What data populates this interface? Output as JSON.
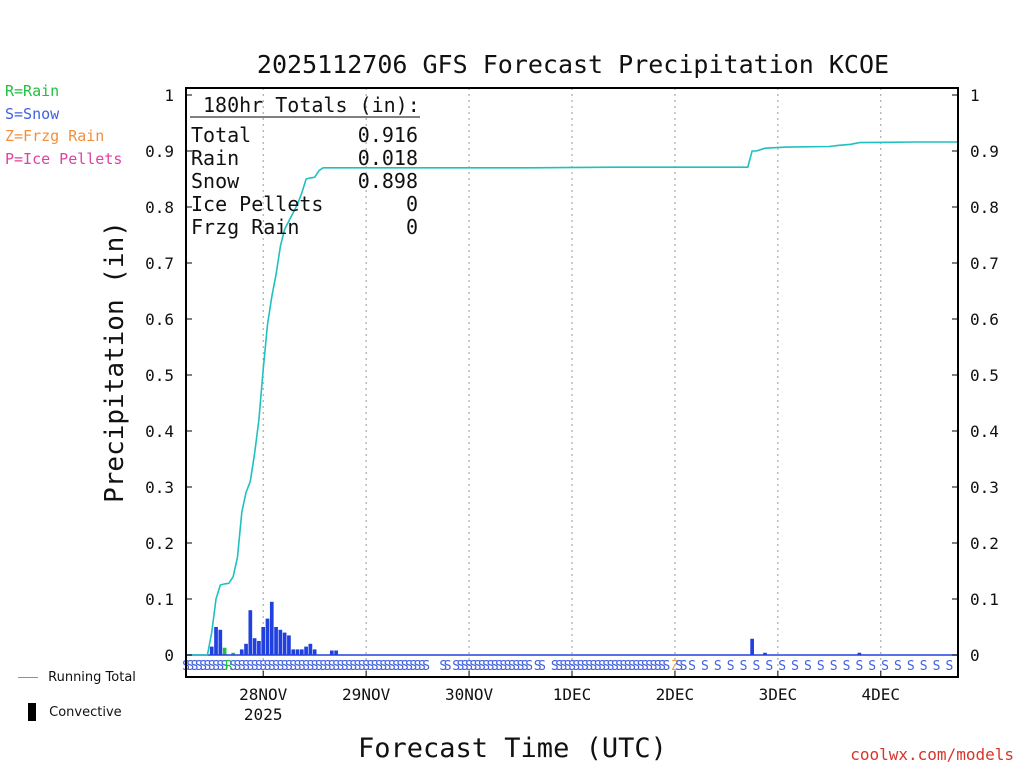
{
  "chart_data": {
    "type": "bar",
    "title": "2025112706 GFS Forecast Precipitation KCOE",
    "xlabel": "Forecast Time (UTC)",
    "ylabel": "Precipitation (in)",
    "ylim": [
      0,
      1
    ],
    "yticks": [
      0,
      0.1,
      0.2,
      0.3,
      0.4,
      0.5,
      0.6,
      0.7,
      0.8,
      0.9,
      1
    ],
    "ytick_labels": [
      "0",
      "0.1",
      "0.2",
      "0.3",
      "0.4",
      "0.5",
      "0.6",
      "0.7",
      "0.8",
      "0.9",
      "1"
    ],
    "x_unit": "hours since 2025-11-27 06Z",
    "xlim": [
      0,
      180
    ],
    "xticks": [
      {
        "hour": 18,
        "label": "28NOV",
        "sublabel": "2025"
      },
      {
        "hour": 42,
        "label": "29NOV"
      },
      {
        "hour": 66,
        "label": "30NOV"
      },
      {
        "hour": 90,
        "label": "1DEC"
      },
      {
        "hour": 114,
        "label": "2DEC"
      },
      {
        "hour": 138,
        "label": "3DEC"
      },
      {
        "hour": 162,
        "label": "4DEC"
      }
    ],
    "grid": "vertical dotted at day boundaries",
    "totals_box": {
      "header": "180hr Totals (in):",
      "rows": [
        {
          "label": "Total",
          "value": "0.916"
        },
        {
          "label": "Rain",
          "value": "0.018"
        },
        {
          "label": "Snow",
          "value": "0.898"
        },
        {
          "label": "Ice Pellets",
          "value": "0"
        },
        {
          "label": "Frzg Rain",
          "value": "0"
        }
      ]
    },
    "series": [
      {
        "name": "Running Total",
        "type": "line",
        "color": "#20c0c0",
        "points": [
          [
            0,
            0
          ],
          [
            5,
            0
          ],
          [
            6,
            0.04
          ],
          [
            7,
            0.1
          ],
          [
            8,
            0.125
          ],
          [
            9,
            0.127
          ],
          [
            10,
            0.128
          ],
          [
            11,
            0.14
          ],
          [
            12,
            0.175
          ],
          [
            13,
            0.255
          ],
          [
            14,
            0.29
          ],
          [
            15,
            0.31
          ],
          [
            16,
            0.36
          ],
          [
            17,
            0.42
          ],
          [
            18,
            0.51
          ],
          [
            19,
            0.59
          ],
          [
            20,
            0.64
          ],
          [
            21,
            0.68
          ],
          [
            22,
            0.73
          ],
          [
            23,
            0.76
          ],
          [
            24,
            0.775
          ],
          [
            25,
            0.79
          ],
          [
            26,
            0.805
          ],
          [
            27,
            0.825
          ],
          [
            28,
            0.85
          ],
          [
            29,
            0.852
          ],
          [
            30,
            0.853
          ],
          [
            31,
            0.865
          ],
          [
            32,
            0.87
          ],
          [
            40,
            0.87
          ],
          [
            60,
            0.87
          ],
          [
            80,
            0.87
          ],
          [
            100,
            0.871
          ],
          [
            120,
            0.871
          ],
          [
            131,
            0.871
          ],
          [
            132,
            0.9
          ],
          [
            133,
            0.9
          ],
          [
            135,
            0.905
          ],
          [
            140,
            0.907
          ],
          [
            150,
            0.908
          ],
          [
            152,
            0.91
          ],
          [
            155,
            0.912
          ],
          [
            157,
            0.915
          ],
          [
            170,
            0.916
          ],
          [
            180,
            0.916
          ]
        ]
      },
      {
        "name": "Snow",
        "type": "bar",
        "color": "#2040e0",
        "bar_width_hours": 1,
        "values": [
          [
            6,
            0.015
          ],
          [
            7,
            0.05
          ],
          [
            8,
            0.045
          ],
          [
            13,
            0.01
          ],
          [
            14,
            0.02
          ],
          [
            15,
            0.08
          ],
          [
            16,
            0.03
          ],
          [
            17,
            0.025
          ],
          [
            18,
            0.05
          ],
          [
            19,
            0.065
          ],
          [
            20,
            0.095
          ],
          [
            21,
            0.05
          ],
          [
            22,
            0.045
          ],
          [
            23,
            0.04
          ],
          [
            24,
            0.035
          ],
          [
            25,
            0.01
          ],
          [
            26,
            0.01
          ],
          [
            27,
            0.01
          ],
          [
            28,
            0.015
          ],
          [
            29,
            0.02
          ],
          [
            30,
            0.01
          ],
          [
            34,
            0.008
          ],
          [
            35,
            0.008
          ],
          [
            132,
            0.029
          ],
          [
            135,
            0.004
          ],
          [
            157,
            0.004
          ]
        ]
      },
      {
        "name": "Rain",
        "type": "bar",
        "color": "#20c040",
        "bar_width_hours": 1,
        "values": [
          [
            9,
            0.013
          ],
          [
            11,
            0.004
          ]
        ]
      }
    ],
    "ptype_row": {
      "description": "precip type letter per forecast hour",
      "segments": [
        {
          "from": 0,
          "to": 8,
          "step": 1,
          "letter": "S"
        },
        {
          "at": 9,
          "letter": "S"
        },
        {
          "at": 10,
          "letter": "R"
        },
        {
          "from": 11,
          "to": 56,
          "step": 1,
          "letter": "S"
        },
        {
          "from": 60,
          "to": 61,
          "step": 1,
          "letter": "S"
        },
        {
          "from": 63,
          "to": 80,
          "step": 1,
          "letter": "S"
        },
        {
          "from": 82,
          "to": 83,
          "step": 1,
          "letter": "S"
        },
        {
          "from": 86,
          "to": 112,
          "step": 1,
          "letter": "S"
        },
        {
          "at": 114,
          "letter": "Z"
        },
        {
          "from": 115,
          "to": 116,
          "step": 1,
          "letter": "S"
        },
        {
          "from": 118,
          "to": 180,
          "step": 3,
          "letter": "S"
        }
      ],
      "colors": {
        "S": "#4060e0",
        "R": "#20c040",
        "Z": "#f0a040"
      }
    }
  },
  "legend": {
    "rain": {
      "text": "R=Rain",
      "color": "#20c040"
    },
    "snow": {
      "text": "S=Snow",
      "color": "#4060e0"
    },
    "frzg": {
      "text": "Z=Frzg Rain",
      "color": "#f09040"
    },
    "ice": {
      "text": "P=Ice Pellets",
      "color": "#e040a0"
    }
  },
  "bottom_legend": {
    "running_total": "Running Total",
    "convective": "Convective"
  },
  "credit": "coolwx.com/models"
}
